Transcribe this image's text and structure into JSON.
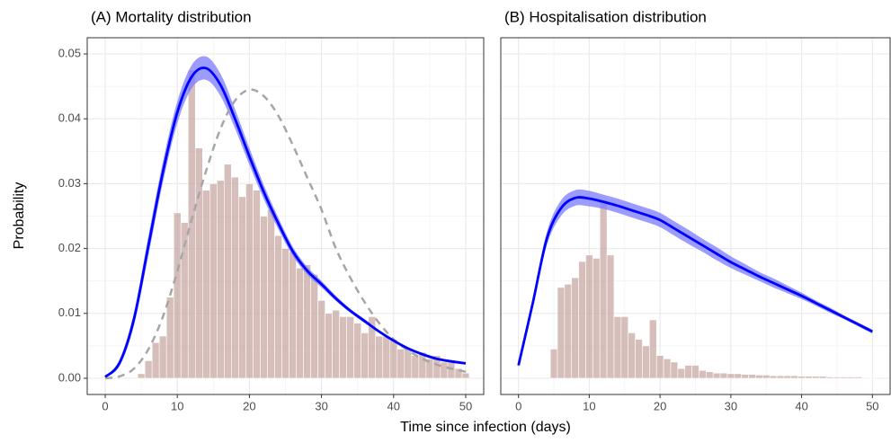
{
  "xlabel": "Time since infection (days)",
  "ylabel": "Probability",
  "chart_data": [
    {
      "type": "histogram",
      "title": "(A) Mortality distribution",
      "xlim": [
        -2.5,
        52.5
      ],
      "ylim": [
        -0.0025,
        0.0525
      ],
      "xticks": [
        0,
        10,
        20,
        30,
        40,
        50
      ],
      "yticks": [
        {
          "value": 0,
          "label": "0.00"
        },
        {
          "value": 0.01,
          "label": "0.01"
        },
        {
          "value": 0.02,
          "label": "0.02"
        },
        {
          "value": 0.03,
          "label": "0.03"
        },
        {
          "value": 0.04,
          "label": "0.04"
        },
        {
          "value": 0.05,
          "label": "0.05"
        }
      ],
      "show_ytick_labels": true,
      "grid": true,
      "histogram": {
        "color": "#c4a29c",
        "bins": [
          4.5,
          5.5,
          6.5,
          7.5,
          8.5,
          9.5,
          10.5,
          11.5,
          12.5,
          13.5,
          14.5,
          15.5,
          16.5,
          17.5,
          18.5,
          19.5,
          20.5,
          21.5,
          22.5,
          23.5,
          24.5,
          25.5,
          26.5,
          27.5,
          28.5,
          29.5,
          30.5,
          31.5,
          32.5,
          33.5,
          34.5,
          35.5,
          36.5,
          37.5,
          38.5,
          39.5,
          40.5,
          41.5,
          42.5,
          43.5,
          44.5,
          45.5,
          46.5,
          47.5,
          48.5,
          49.5,
          50.5
        ],
        "values": [
          0.0007,
          0.0027,
          0.0055,
          0.0065,
          0.0125,
          0.0255,
          0.024,
          0.0475,
          0.0355,
          0.029,
          0.03,
          0.0305,
          0.033,
          0.031,
          0.028,
          0.03,
          0.029,
          0.025,
          0.026,
          0.022,
          0.02,
          0.0195,
          0.017,
          0.0175,
          0.016,
          0.012,
          0.01,
          0.0105,
          0.0095,
          0.0095,
          0.0085,
          0.007,
          0.0095,
          0.0065,
          0.0065,
          0.006,
          0.0045,
          0.0045,
          0.0035,
          0.004,
          0.003,
          0.0035,
          0.0025,
          0.0025,
          0.0015,
          0.0008
        ]
      },
      "reference": {
        "color": "#a6a6a6",
        "dashed": true,
        "x": [
          0,
          2,
          4,
          6,
          8,
          10,
          12,
          14,
          16,
          18,
          20,
          22,
          24,
          26,
          28,
          30,
          32,
          34,
          36,
          38,
          40,
          42,
          44,
          46,
          48,
          50
        ],
        "values": [
          0,
          0.0003,
          0.0015,
          0.0045,
          0.0095,
          0.0165,
          0.0245,
          0.032,
          0.0385,
          0.0428,
          0.0445,
          0.0435,
          0.0405,
          0.036,
          0.031,
          0.026,
          0.02,
          0.0155,
          0.0117,
          0.0085,
          0.006,
          0.0043,
          0.003,
          0.0021,
          0.0015,
          0.001
        ]
      },
      "fit": {
        "color": "#0000ff",
        "band_color": "#7b7bff",
        "x": [
          0,
          2,
          4,
          6,
          8,
          10,
          12,
          14,
          16,
          18,
          20,
          22,
          24,
          26,
          28,
          30,
          32,
          34,
          36,
          38,
          40,
          42,
          44,
          46,
          48,
          50
        ],
        "values": [
          0.0002,
          0.0024,
          0.0092,
          0.0205,
          0.0318,
          0.041,
          0.0465,
          0.0478,
          0.0452,
          0.04,
          0.0342,
          0.0287,
          0.0239,
          0.0196,
          0.0166,
          0.0145,
          0.0123,
          0.0104,
          0.0088,
          0.0072,
          0.0058,
          0.0046,
          0.0037,
          0.003,
          0.0026,
          0.0023
        ],
        "lower": [
          0.0001,
          0.0019,
          0.0082,
          0.019,
          0.0302,
          0.0393,
          0.0447,
          0.046,
          0.0435,
          0.0385,
          0.0329,
          0.0276,
          0.023,
          0.0189,
          0.016,
          0.014,
          0.0119,
          0.0101,
          0.0085,
          0.007,
          0.0056,
          0.0044,
          0.0035,
          0.0028,
          0.0024,
          0.0021
        ],
        "upper": [
          0.0003,
          0.0029,
          0.0102,
          0.022,
          0.0334,
          0.0427,
          0.0483,
          0.0496,
          0.0469,
          0.0415,
          0.0355,
          0.0298,
          0.0248,
          0.0203,
          0.0172,
          0.015,
          0.0127,
          0.0107,
          0.0091,
          0.0074,
          0.006,
          0.0048,
          0.0039,
          0.0032,
          0.0028,
          0.0025
        ]
      }
    },
    {
      "type": "histogram",
      "title": "(B) Hospitalisation distribution",
      "xlim": [
        -2.5,
        52.5
      ],
      "ylim": [
        -0.0025,
        0.0525
      ],
      "xticks": [
        0,
        10,
        20,
        30,
        40,
        50
      ],
      "yticks": [
        0,
        0.01,
        0.02,
        0.03,
        0.04,
        0.05
      ],
      "show_ytick_labels": false,
      "grid": true,
      "histogram": {
        "color": "#c4a29c",
        "bins": [
          4.5,
          5.5,
          6.5,
          7.5,
          8.5,
          9.5,
          10.5,
          11.5,
          12.5,
          13.5,
          14.5,
          15.5,
          16.5,
          17.5,
          18.5,
          19.5,
          20.5,
          21.5,
          22.5,
          23.5,
          24.5,
          25.5,
          26.5,
          27.5,
          28.5,
          29.5,
          30.5,
          31.5,
          32.5,
          33.5,
          34.5,
          35.5,
          36.5,
          37.5,
          38.5,
          39.5,
          40.5,
          41.5,
          42.5,
          43.5,
          44.5,
          45.5,
          46.5,
          47.5,
          48.5,
          49.5,
          50.5
        ],
        "values": [
          0.0045,
          0.014,
          0.0145,
          0.0155,
          0.018,
          0.019,
          0.0185,
          0.0275,
          0.019,
          0.0095,
          0.0095,
          0.007,
          0.006,
          0.005,
          0.009,
          0.0035,
          0.003,
          0.0025,
          0.0015,
          0.002,
          0.002,
          0.0012,
          0.001,
          0.0008,
          0.0008,
          0.0007,
          0.0007,
          0.0006,
          0.0006,
          0.0005,
          0.0005,
          0.0004,
          0.0004,
          0.0004,
          0.0004,
          0.0003,
          0.0003,
          0.0003,
          0.0003,
          0.0002,
          0.0002,
          0.0002,
          0.0002,
          0.0002,
          0.0001,
          0.0001
        ]
      },
      "fit": {
        "color": "#0000ff",
        "band_color": "#7b7bff",
        "x": [
          0,
          2,
          4,
          6,
          8,
          10,
          12,
          14,
          16,
          18,
          20,
          22,
          24,
          26,
          28,
          30,
          32,
          34,
          36,
          38,
          40,
          42,
          44,
          46,
          48,
          50
        ],
        "values": [
          0.002,
          0.0115,
          0.0215,
          0.0262,
          0.0278,
          0.0277,
          0.0272,
          0.0266,
          0.0259,
          0.0252,
          0.0244,
          0.0231,
          0.0218,
          0.0205,
          0.0192,
          0.0179,
          0.0168,
          0.0157,
          0.0147,
          0.0137,
          0.0127,
          0.0116,
          0.0105,
          0.0094,
          0.0083,
          0.0072
        ],
        "lower": [
          0.0017,
          0.0108,
          0.0205,
          0.025,
          0.0266,
          0.0265,
          0.0261,
          0.0255,
          0.0248,
          0.0241,
          0.0233,
          0.022,
          0.0207,
          0.0195,
          0.0182,
          0.017,
          0.016,
          0.015,
          0.014,
          0.0131,
          0.0122,
          0.0112,
          0.0101,
          0.0091,
          0.008,
          0.0069
        ],
        "upper": [
          0.0023,
          0.0122,
          0.0225,
          0.0274,
          0.029,
          0.0289,
          0.0283,
          0.0277,
          0.027,
          0.0263,
          0.0255,
          0.0242,
          0.0229,
          0.0215,
          0.0202,
          0.0188,
          0.0176,
          0.0164,
          0.0154,
          0.0143,
          0.0132,
          0.012,
          0.0109,
          0.0097,
          0.0086,
          0.0075
        ]
      }
    }
  ]
}
